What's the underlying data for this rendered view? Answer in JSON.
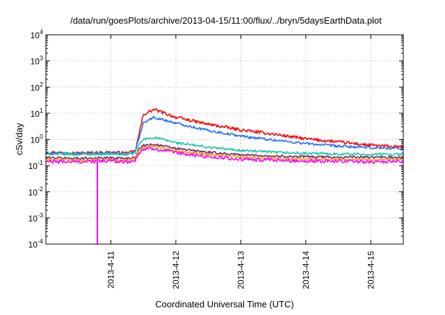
{
  "chart_data": {
    "type": "line",
    "title": "/data/run/goesPlots/archive/2013-04-15/11:00/flux/../bryn/5daysEarthData.plot",
    "xlabel": "Coordinated Universal Time (UTC)",
    "ylabel": "cSv/day",
    "y_scale": "log",
    "ylim": [
      0.0001,
      10000
    ],
    "xlim": [
      "2013-04-10T00:00",
      "2013-04-15T12:00"
    ],
    "grid": true,
    "legend": "none",
    "x_ticks": [
      "2013-4-11",
      "2013-4-12",
      "2013-4-13",
      "2013-4-14",
      "2013-4-15"
    ],
    "y_ticks": [
      {
        "base": "10",
        "exp": "4"
      },
      {
        "base": "10",
        "exp": "3"
      },
      {
        "base": "10",
        "exp": "2"
      },
      {
        "base": "10",
        "exp": "1"
      },
      {
        "base": "10",
        "exp": "0"
      },
      {
        "base": "10",
        "exp": "-1"
      },
      {
        "base": "10",
        "exp": "-2"
      },
      {
        "base": "10",
        "exp": "-3"
      },
      {
        "base": "10",
        "exp": "-4"
      }
    ],
    "x": [
      "2013-04-10T00:00",
      "2013-04-10T12:00",
      "2013-04-11T00:00",
      "2013-04-11T06:00",
      "2013-04-11T09:00",
      "2013-04-11T10:00",
      "2013-04-11T12:00",
      "2013-04-11T16:00",
      "2013-04-12T00:00",
      "2013-04-12T12:00",
      "2013-04-13T00:00",
      "2013-04-13T12:00",
      "2013-04-14T00:00",
      "2013-04-14T12:00",
      "2013-04-15T00:00",
      "2013-04-15T12:00"
    ],
    "series": [
      {
        "color": "#ff0000",
        "values": [
          0.32,
          0.3,
          0.32,
          0.3,
          0.35,
          1.0,
          9.0,
          14.0,
          7.0,
          3.8,
          2.3,
          1.6,
          1.05,
          0.8,
          0.6,
          0.5
        ]
      },
      {
        "color": "#1e6eff",
        "values": [
          0.3,
          0.28,
          0.3,
          0.28,
          0.33,
          0.8,
          4.5,
          7.0,
          4.2,
          2.2,
          1.35,
          0.95,
          0.7,
          0.55,
          0.48,
          0.45
        ]
      },
      {
        "color": "#1ec8a0",
        "values": [
          0.28,
          0.27,
          0.28,
          0.27,
          0.3,
          0.55,
          1.0,
          1.2,
          0.75,
          0.5,
          0.38,
          0.32,
          0.29,
          0.28,
          0.27,
          0.27
        ]
      },
      {
        "color": "#6a2a7a",
        "values": [
          0.2,
          0.19,
          0.2,
          0.19,
          0.21,
          0.38,
          0.6,
          0.65,
          0.45,
          0.32,
          0.26,
          0.23,
          0.22,
          0.21,
          0.21,
          0.2
        ]
      },
      {
        "color": "#ffa000",
        "values": [
          0.17,
          0.16,
          0.17,
          0.16,
          0.18,
          0.33,
          0.52,
          0.55,
          0.38,
          0.27,
          0.21,
          0.19,
          0.18,
          0.18,
          0.17,
          0.17
        ]
      },
      {
        "color": "#ff00ff",
        "values": [
          0.14,
          0.14,
          0.15,
          0.14,
          0.15,
          0.28,
          0.42,
          0.45,
          0.3,
          0.22,
          0.17,
          0.16,
          0.15,
          0.15,
          0.14,
          0.14
        ]
      }
    ],
    "annotations": [
      {
        "series_color": "#ff00ff",
        "x": "2013-04-10T19:00",
        "y": 0.0001,
        "note_type": "dropout"
      }
    ]
  }
}
